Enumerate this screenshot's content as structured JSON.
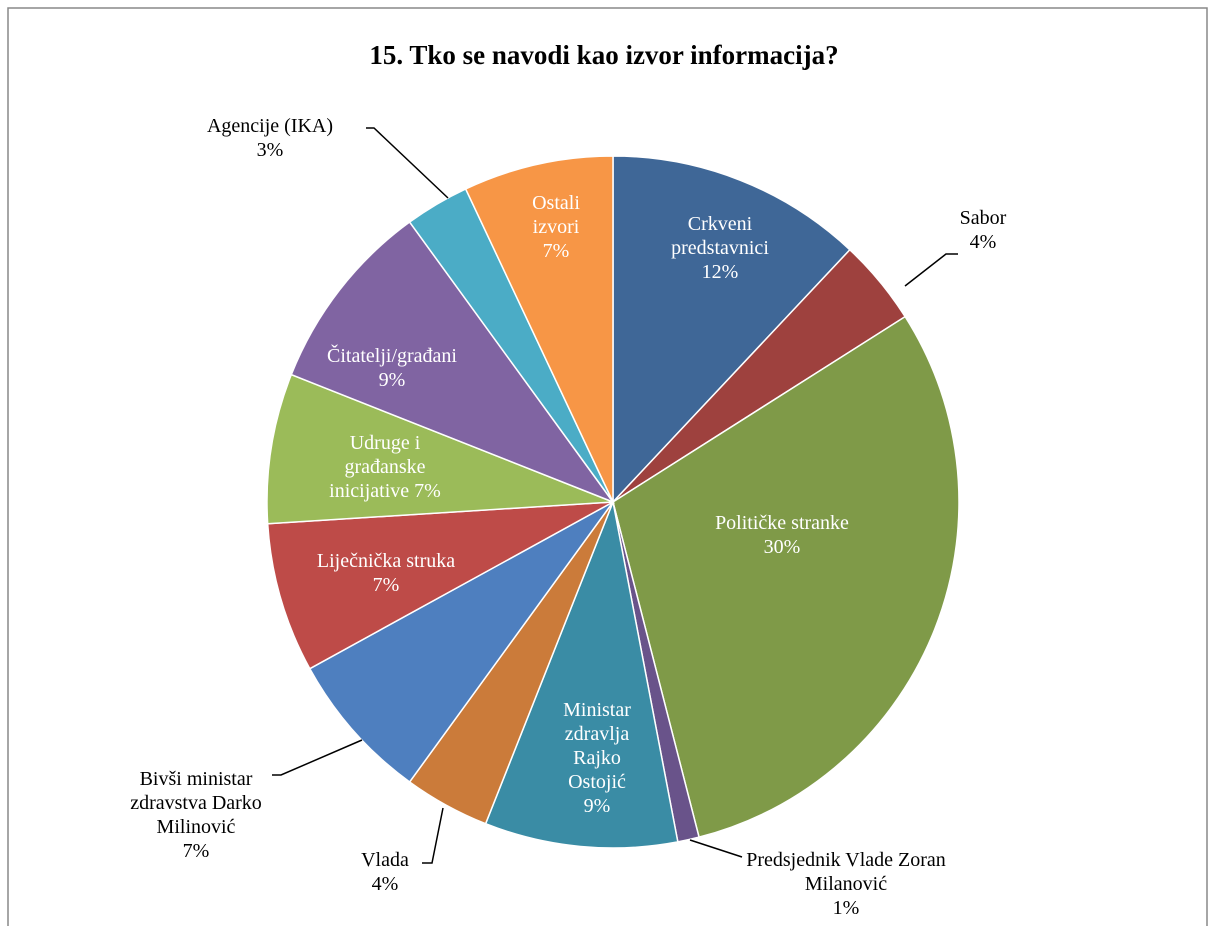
{
  "chart_data": {
    "type": "pie",
    "title": "15. Tko se navodi kao izvor informacija?",
    "categories": [
      "Crkveni predstavnici",
      "Sabor",
      "Političke stranke",
      "Predsjednik Vlade Zoran Milanović",
      "Ministar zdravlja Rajko Ostojić",
      "Vlada",
      "Bivši ministar zdravstva Darko Milinović",
      "Liječnička struka",
      "Udruge i građanske inicijative",
      "Čitatelji/građani",
      "Agencije (IKA)",
      "Ostali izvori"
    ],
    "values": [
      12,
      4,
      30,
      1,
      9,
      4,
      7,
      7,
      7,
      9,
      3,
      7
    ],
    "value_labels": [
      "12%",
      "4%",
      "30%",
      "1%",
      "9%",
      "4%",
      "7%",
      "7%",
      "7%",
      "9%",
      "3%",
      "7%"
    ],
    "colors": [
      "#3f6797",
      "#9e413e",
      "#7f9a48",
      "#69538a",
      "#3a8ca5",
      "#cb7b3a",
      "#4e7fbf",
      "#be4b48",
      "#9bbb59",
      "#8064a2",
      "#4bacc6",
      "#f79646"
    ]
  }
}
